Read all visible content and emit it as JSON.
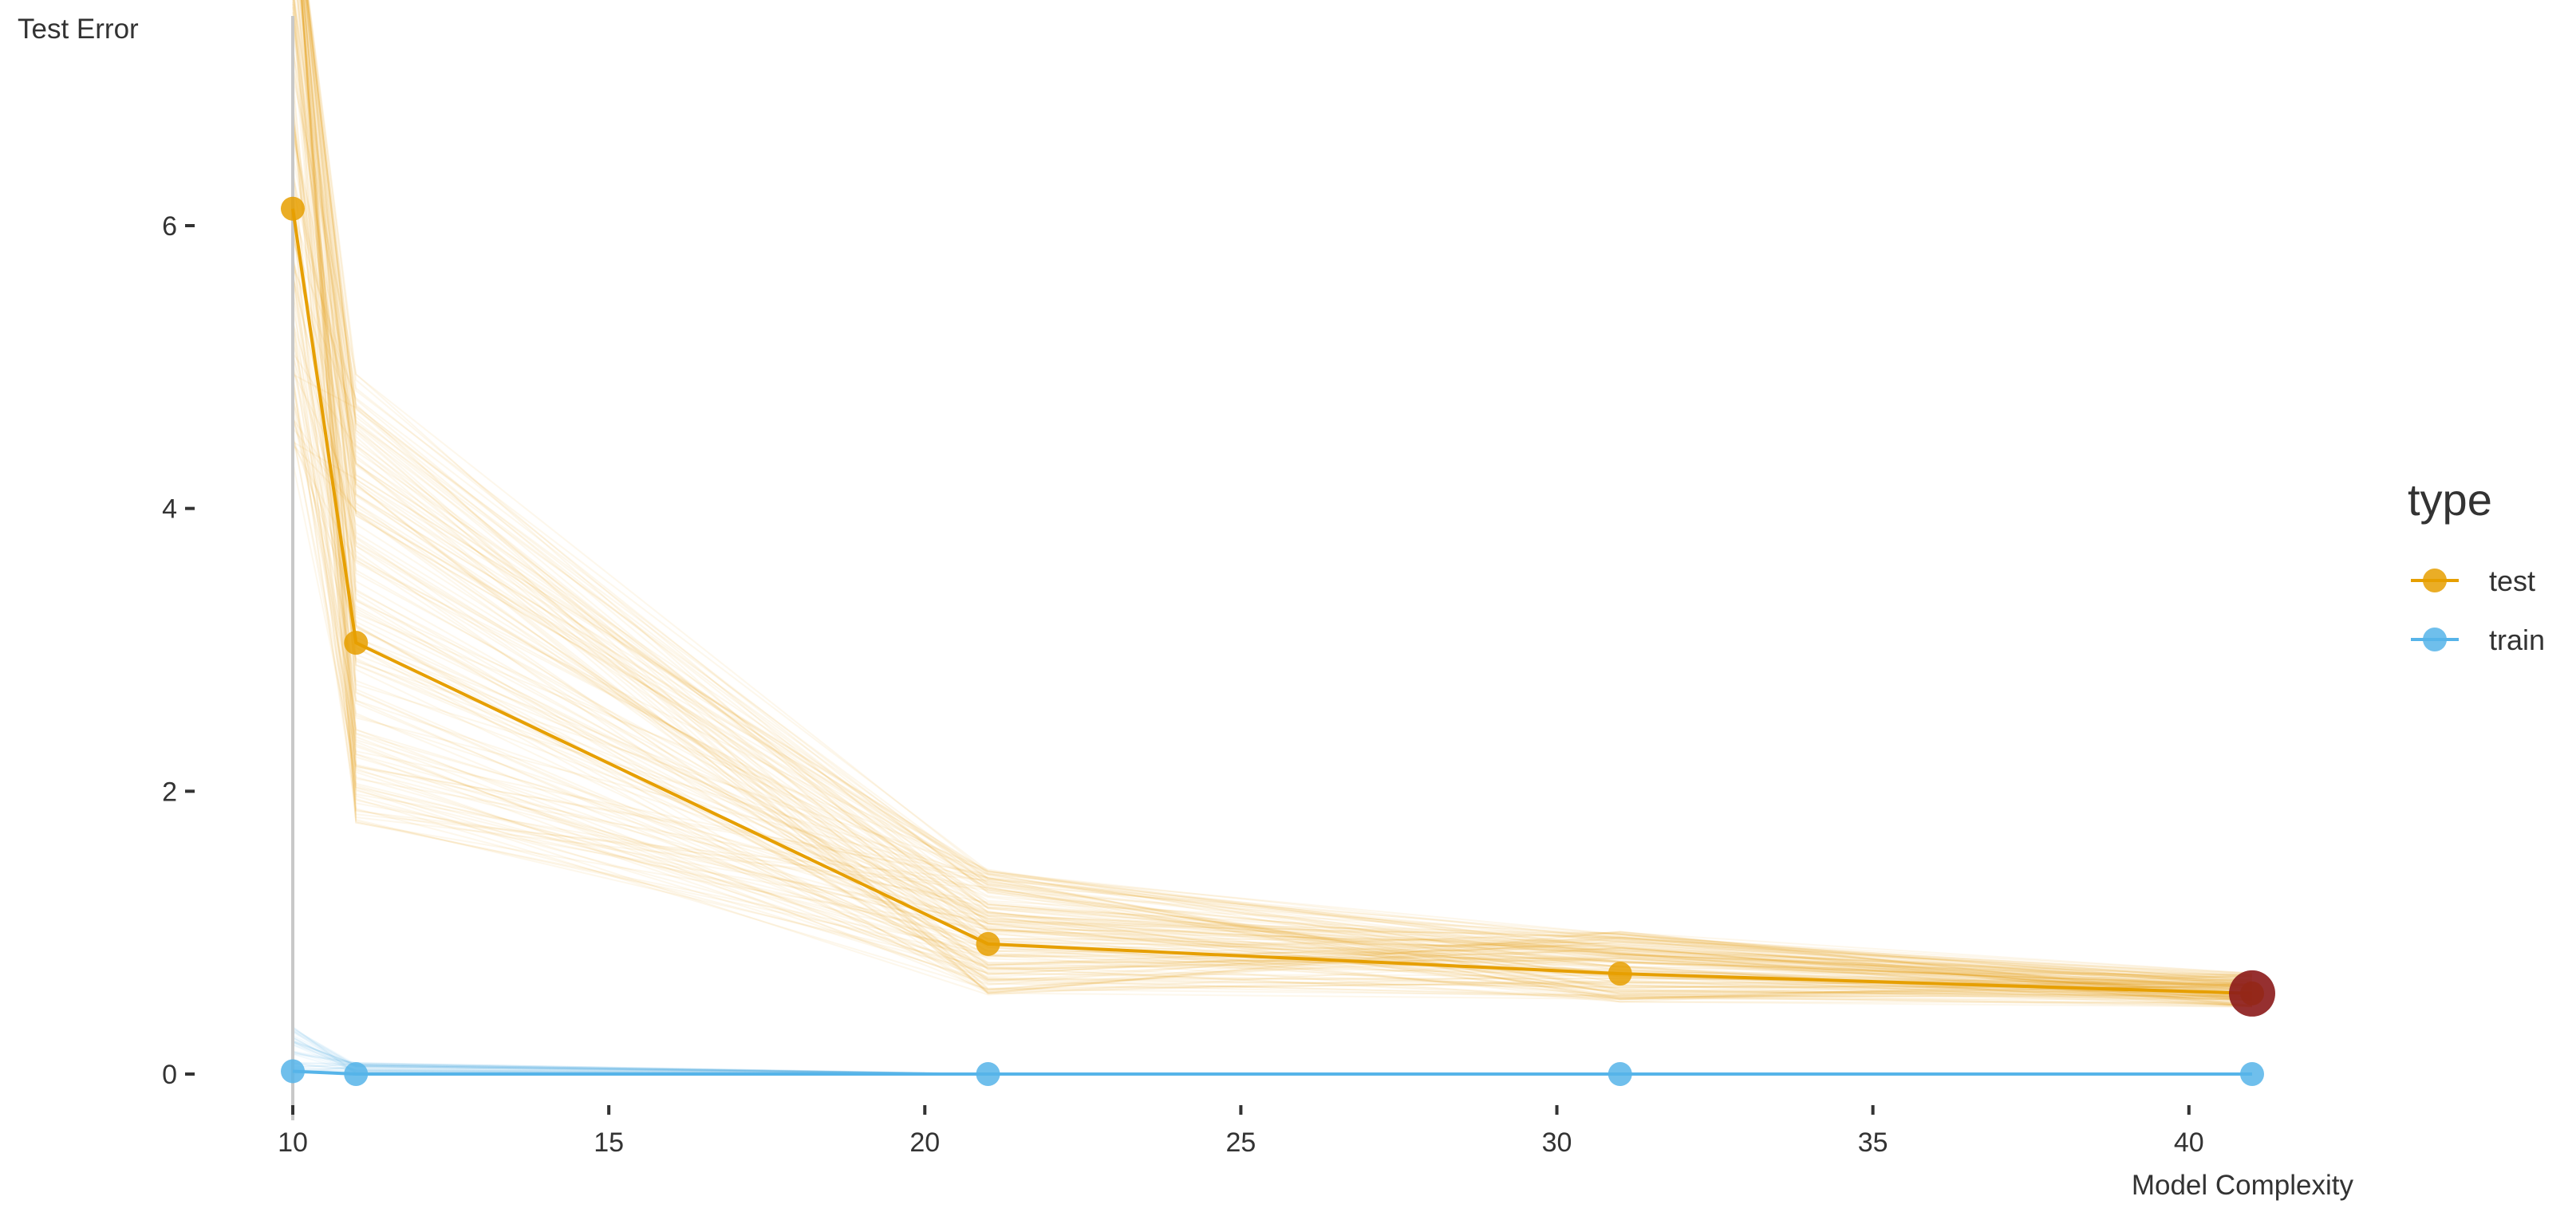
{
  "chart_data": {
    "type": "line",
    "title": "",
    "xlabel": "Model Complexity",
    "ylabel": "Test Error",
    "xlim": [
      10,
      41
    ],
    "ylim": [
      -0.3,
      7.5
    ],
    "x_ticks": [
      10,
      15,
      20,
      25,
      30,
      35,
      40
    ],
    "y_ticks": [
      0,
      2,
      4,
      6
    ],
    "x": [
      10,
      11,
      21,
      31,
      41
    ],
    "series": [
      {
        "name": "test",
        "color": "#E69F00",
        "values": [
          6.12,
          3.05,
          0.92,
          0.71,
          0.57
        ]
      },
      {
        "name": "train",
        "color": "#56B4E9",
        "values": [
          0.02,
          0.0,
          0.0,
          0.0,
          0.0
        ]
      }
    ],
    "highlight": {
      "x": 41,
      "y": 0.57,
      "color": "#8B1A1A"
    },
    "legend": {
      "title": "type",
      "position": "right",
      "entries": [
        "test",
        "train"
      ]
    },
    "grid": false,
    "background_replicates": "many faint individual test-error curves (orange) and train-error curves (light blue) behind the mean lines"
  }
}
